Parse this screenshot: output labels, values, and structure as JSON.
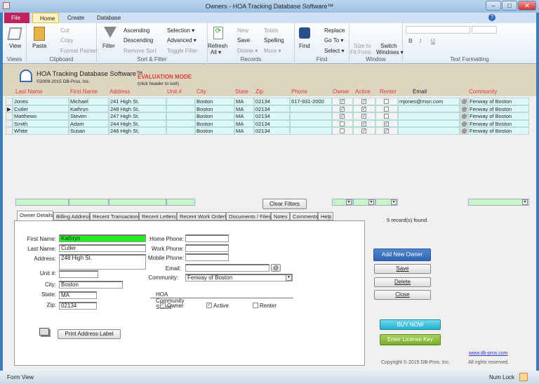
{
  "window": {
    "title": "Owners  -  HOA Tracking Database Software™",
    "min": "–",
    "max": "□",
    "close": "✕"
  },
  "ribbon_tabs": [
    {
      "label": "File",
      "key": "F"
    },
    {
      "label": "Home",
      "key": "H"
    },
    {
      "label": "Create",
      "key": "C"
    },
    {
      "label": "Database",
      "key": "Y"
    }
  ],
  "qat_keys": [
    "1",
    "2",
    "3"
  ],
  "ribbon": {
    "views": {
      "label": "Views",
      "view": "View"
    },
    "clipboard": {
      "label": "Clipboard",
      "paste": "Paste",
      "cut": "Cut",
      "copy": "Copy",
      "format_painter": "Format Painter"
    },
    "sort_filter": {
      "label": "Sort & Filter",
      "filter": "Filter",
      "ascending": "Ascending",
      "descending": "Descending",
      "remove_sort": "Remove Sort",
      "selection": "Selection ▾",
      "advanced": "Advanced ▾",
      "toggle_filter": "Toggle Filter"
    },
    "records": {
      "label": "Records",
      "refresh": "Refresh",
      "refresh2": "All ▾",
      "new": "New",
      "save": "Save",
      "delete": "Delete ▾",
      "totals": "Totals",
      "spelling": "Spelling",
      "more": "More ▾"
    },
    "find": {
      "label": "Find",
      "find": "Find",
      "replace": "Replace",
      "goto": "Go To ▾",
      "select": "Select ▾"
    },
    "window": {
      "label": "Window",
      "size": "Size to",
      "size2": "Fit Form",
      "switch": "Switch",
      "switch2": "Windows ▾"
    },
    "text": {
      "label": "Text Formatting",
      "bold": "B",
      "italic": "I",
      "underline": "U"
    }
  },
  "header": {
    "app_title": "HOA Tracking Database Software™",
    "copyright": "©2009-2015 DB-Pros, Inc.",
    "eval": "EVALUATION MODE",
    "sort_hint": "(click header to sort)"
  },
  "columns": [
    "Last Name",
    "First Name",
    "Address",
    "Unit #",
    "City",
    "State",
    "Zip",
    "Phone",
    "Owner",
    "Active",
    "Renter",
    "Email",
    "Community"
  ],
  "rows": [
    {
      "last": "Jones",
      "first": "Michael",
      "address": "241 High St.",
      "unit": "",
      "city": "Boston",
      "state": "MA",
      "zip": "02134",
      "phone": "617-931-2000",
      "owner": true,
      "active": true,
      "renter": false,
      "email": "mjones@msn.com",
      "community": "Fenway of Boston"
    },
    {
      "last": "Cutler",
      "first": "Kathryn",
      "address": "248 High St.",
      "unit": "",
      "city": "Boston",
      "state": "MA",
      "zip": "02134",
      "phone": "",
      "owner": true,
      "active": true,
      "renter": false,
      "email": "",
      "community": "Fenway of Boston",
      "current": true
    },
    {
      "last": "Matthews",
      "first": "Steven",
      "address": "247 High St.",
      "unit": "",
      "city": "Boston",
      "state": "MA",
      "zip": "02134",
      "phone": "",
      "owner": true,
      "active": true,
      "renter": false,
      "email": "",
      "community": "Fenway of Boston"
    },
    {
      "last": "Smith",
      "first": "Adam",
      "address": "244 High St.",
      "unit": "",
      "city": "Boston",
      "state": "MA",
      "zip": "02134",
      "phone": "",
      "owner": false,
      "active": true,
      "renter": true,
      "email": "",
      "community": "Fenway of Boston"
    },
    {
      "last": "White",
      "first": "Susan",
      "address": "246 High St.",
      "unit": "",
      "city": "Boston",
      "state": "MA",
      "zip": "02134",
      "phone": "",
      "owner": false,
      "active": true,
      "renter": true,
      "email": "",
      "community": "Fenway of Boston"
    }
  ],
  "clear_filters": "Clear Filters",
  "records_found": "5 record(s) found.",
  "detail_tabs": [
    "Owner Details",
    "Billing Address",
    "Recent Transactions",
    "Recent Letters",
    "Recent Work Orders",
    "Documents / Files",
    "Notes",
    "Comments",
    "Help"
  ],
  "details": {
    "first_name_label": "First Name:",
    "first_name": "Kathryn",
    "last_name_label": "Last Name:",
    "last_name": "Cutler",
    "address_label": "Address:",
    "address": "248 High St.",
    "unit_label": "Unit #:",
    "unit": "",
    "city_label": "City:",
    "city": "Boston",
    "state_label": "State:",
    "state": "MA",
    "zip_label": "Zip:",
    "zip": "02134",
    "home_phone_label": "Home Phone:",
    "work_phone_label": "Work Phone:",
    "mobile_phone_label": "Mobile Phone:",
    "email_label": "Email:",
    "community_label": "Community:",
    "community": "Fenway of Boston",
    "status_title": "HOA Community Status",
    "owner": "Owner",
    "active": "Active",
    "renter": "Renter",
    "owner_checked": true,
    "active_checked": true,
    "renter_checked": false,
    "print_label": "Print Address Label"
  },
  "actions": {
    "add": "Add New Owner",
    "save": "Save",
    "delete": "Delete",
    "close": "Close",
    "buy": "BUY NOW",
    "license": "Enter License Key"
  },
  "footer": {
    "website": "www.db-pros.com",
    "copyright": "Copyright © 2015 DB-Pros, Inc.",
    "rights": "All rights reserved."
  },
  "statusbar": {
    "left": "Form View",
    "numlock": "Num Lock"
  },
  "colors": {
    "accent": "#2f66b3",
    "file_tab": "#c0245c",
    "row_bg": "#dcf8f8",
    "filter_bg": "#c6f7c6",
    "highlight": "#22ee22",
    "eval": "#e23a3a"
  }
}
